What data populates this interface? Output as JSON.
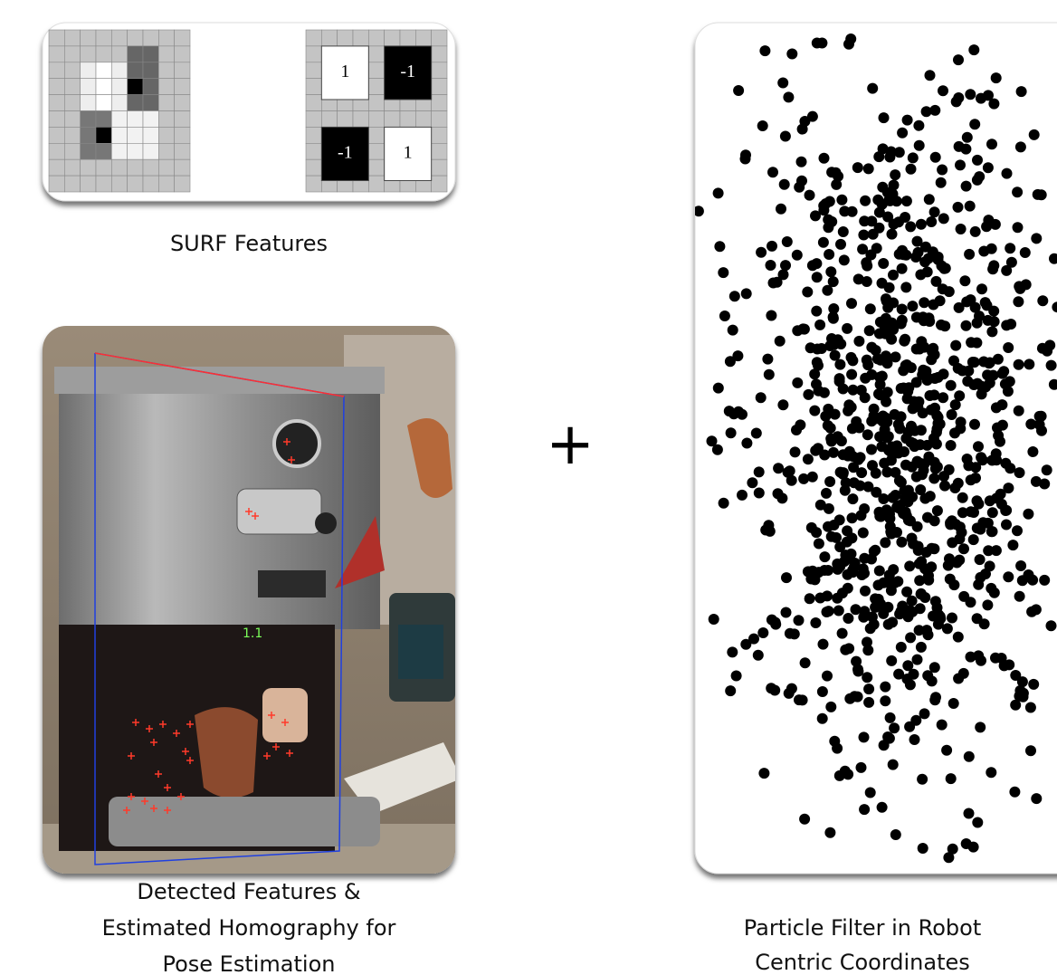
{
  "surf": {
    "caption": "SURF Features",
    "box_labels": [
      "1",
      "-1",
      "-1",
      "1"
    ]
  },
  "photo": {
    "overlay_label": "1.1",
    "caption": [
      "Detected Features &",
      "Estimated Homography for",
      "Pose Estimation"
    ]
  },
  "operator": "+",
  "particles": {
    "caption": [
      "Particle Filter in Robot",
      "Centric Coordinates"
    ]
  }
}
